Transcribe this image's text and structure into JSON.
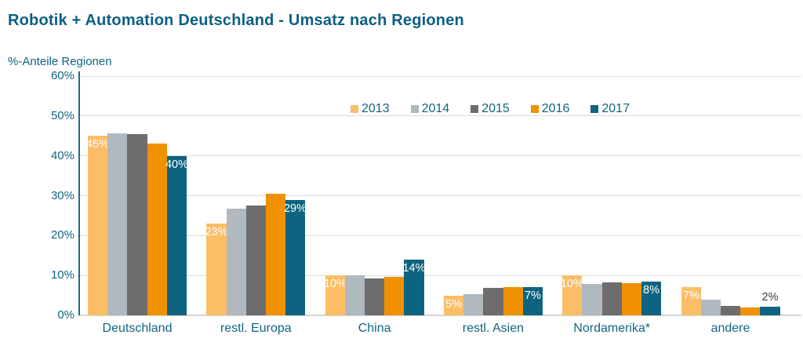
{
  "page": {
    "background": "#FFFFFF"
  },
  "colors": {
    "teal_text": "#116483",
    "title_text": "#0C6083",
    "axis_line": "#1A6B8C",
    "baseline": "#D6D6D6",
    "gridline": "#DBDBDB",
    "label_inside": "#FFFFFF",
    "label_outside": "#3C3C3C"
  },
  "chart_data": {
    "type": "bar",
    "title": "Robotik + Automation Deutschland - Umsatz nach Regionen",
    "ylabel": "%-Anteile Regionen",
    "xlabel": "",
    "ylim": [
      0,
      60
    ],
    "ytick_step": 10,
    "ytick_labels": [
      "0%",
      "10%",
      "20%",
      "30%",
      "40%",
      "50%",
      "60%"
    ],
    "grid": true,
    "legend_position": "top-center",
    "categories": [
      "Deutschland",
      "restl. Europa",
      "China",
      "restl. Asien",
      "Nordamerika*",
      "andere"
    ],
    "series": [
      {
        "name": "2013",
        "color": "#FBBE67",
        "values": [
          45,
          23,
          10,
          5,
          10,
          7
        ],
        "data_labels": [
          "45%",
          "23%",
          "10%",
          "5%",
          "10%",
          "7%"
        ]
      },
      {
        "name": "2014",
        "color": "#AFB9BE",
        "values": [
          45.7,
          26.8,
          10,
          5.4,
          7.8,
          4
        ]
      },
      {
        "name": "2015",
        "color": "#6E6C6C",
        "values": [
          45.5,
          27.5,
          9.3,
          6.9,
          8.2,
          2.4
        ]
      },
      {
        "name": "2016",
        "color": "#F09102",
        "values": [
          43,
          30.5,
          9.6,
          7.1,
          8,
          2
        ]
      },
      {
        "name": "2017",
        "color": "#0E6480",
        "values": [
          40,
          29,
          14,
          7,
          8.4,
          2.1
        ],
        "data_labels": [
          "40%",
          "29%",
          "14%",
          "7%",
          "8%",
          "2%"
        ]
      }
    ]
  }
}
